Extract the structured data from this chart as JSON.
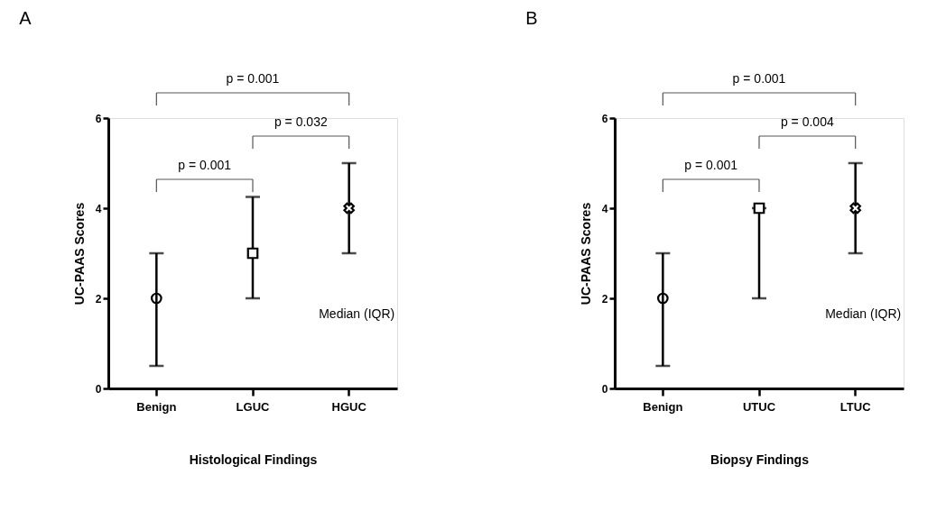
{
  "chart_data": [
    {
      "type": "scatter",
      "title": "A",
      "xlabel": "Histological Findings",
      "ylabel": "UC-PAAS Scores",
      "categories": [
        "Benign",
        "LGUC",
        "HGUC"
      ],
      "ylim": [
        0,
        6
      ],
      "yticks": [
        0,
        2,
        4,
        6
      ],
      "grid": false,
      "series": [
        {
          "color": "#000000",
          "marker": "circle",
          "values": [
            2,
            null,
            null
          ],
          "errors": [
            [
              0.5,
              3
            ],
            null,
            null
          ]
        },
        {
          "color": "#000000",
          "marker": "square",
          "values": [
            null,
            3,
            null
          ],
          "errors": [
            null,
            [
              2,
              4.25
            ],
            null
          ]
        },
        {
          "color": "#000000",
          "marker": "cross",
          "values": [
            null,
            null,
            4
          ],
          "errors": [
            null,
            null,
            [
              3,
              5
            ]
          ]
        }
      ],
      "annotations": [
        "p = 0.001",
        "p = 0.032",
        "p = 0.001",
        "Median (IQR)"
      ]
    },
    {
      "type": "scatter",
      "title": "B",
      "xlabel": "Biopsy Findings",
      "ylabel": "UC-PAAS Scores",
      "categories": [
        "Benign",
        "UTUC",
        "LTUC"
      ],
      "ylim": [
        0,
        6
      ],
      "yticks": [
        0,
        2,
        4,
        6
      ],
      "grid": false,
      "series": [
        {
          "color": "#000000",
          "marker": "circle",
          "values": [
            2,
            null,
            null
          ],
          "errors": [
            [
              0.5,
              3
            ],
            null,
            null
          ]
        },
        {
          "color": "#000000",
          "marker": "square",
          "values": [
            null,
            4,
            null
          ],
          "errors": [
            null,
            [
              2,
              4
            ],
            null
          ]
        },
        {
          "color": "#000000",
          "marker": "cross",
          "values": [
            null,
            null,
            4
          ],
          "errors": [
            null,
            null,
            [
              3,
              5
            ]
          ]
        }
      ],
      "annotations": [
        "p = 0.001",
        "p = 0.004",
        "p = 0.001",
        "Median (IQR)"
      ]
    }
  ]
}
